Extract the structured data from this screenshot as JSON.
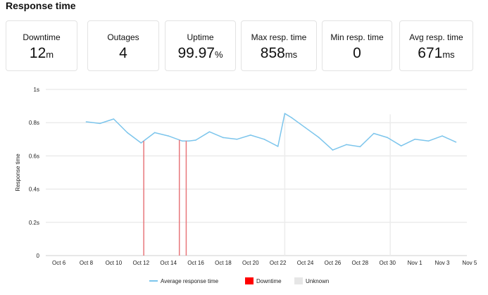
{
  "title": "Response time",
  "cards": [
    {
      "label": "Downtime",
      "value": "12",
      "unit": "m"
    },
    {
      "label": "Outages",
      "value": "4",
      "unit": ""
    },
    {
      "label": "Uptime",
      "value": "99.97",
      "unit": "%"
    },
    {
      "label": "Max resp. time",
      "value": "858",
      "unit": "ms"
    },
    {
      "label": "Min resp. time",
      "value": "0",
      "unit": ""
    },
    {
      "label": "Avg resp. time",
      "value": "671",
      "unit": "ms"
    }
  ],
  "chart_data": {
    "type": "line",
    "ylabel": "Response time",
    "ylim": [
      0,
      1
    ],
    "yticks": [
      "0",
      "0.2s",
      "0.4s",
      "0.6s",
      "0.8s",
      "1s"
    ],
    "xticks": [
      "Oct 6",
      "Oct 8",
      "Oct 10",
      "Oct 12",
      "Oct 14",
      "Oct 16",
      "Oct 18",
      "Oct 20",
      "Oct 22",
      "Oct 24",
      "Oct 26",
      "Oct 28",
      "Oct 30",
      "Nov 1",
      "Nov 3",
      "Nov 5"
    ],
    "series": [
      {
        "name": "Average response time",
        "color": "#7cc5ec",
        "x": [
          8,
          9,
          10,
          11,
          12,
          13,
          14,
          15,
          15.5,
          16,
          17,
          18,
          19,
          20,
          21,
          22,
          22.5,
          23,
          24,
          25,
          26,
          27,
          28,
          29,
          30,
          31,
          32,
          33,
          34,
          35
        ],
        "values": [
          0.805,
          0.795,
          0.822,
          0.74,
          0.678,
          0.74,
          0.72,
          0.69,
          0.69,
          0.695,
          0.745,
          0.71,
          0.7,
          0.725,
          0.7,
          0.657,
          0.855,
          0.83,
          0.77,
          0.71,
          0.635,
          0.668,
          0.655,
          0.735,
          0.71,
          0.66,
          0.7,
          0.69,
          0.72,
          0.683
        ]
      }
    ],
    "downtime_x": [
      12.2,
      14.8,
      15.3
    ],
    "unknown_x": [
      22.5,
      30.2
    ],
    "legend": [
      {
        "label": "Average response time",
        "kind": "line",
        "color": "#7cc5ec"
      },
      {
        "label": "Downtime",
        "kind": "box",
        "color": "#ff0000"
      },
      {
        "label": "Unknown",
        "kind": "box",
        "color": "#e6e6e6"
      }
    ],
    "legend_position": "bottom-center",
    "grid": true
  }
}
